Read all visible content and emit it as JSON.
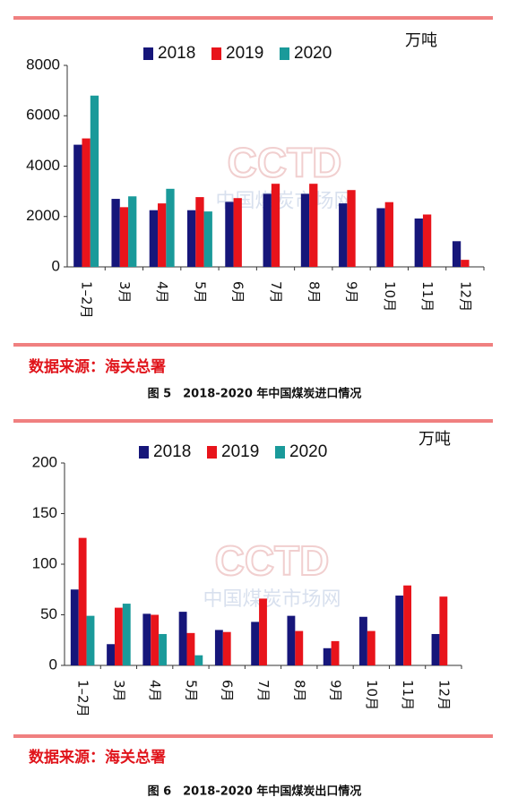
{
  "chart_data": [
    {
      "type": "bar",
      "unit": "万吨",
      "watermark": "CCTD",
      "watermark_sub": "中国煤炭市场网",
      "source": "数据来源：海关总署",
      "caption": "图 5　2018-2020 年中国煤炭进口情况",
      "categories": [
        "1–2月",
        "3月",
        "4月",
        "5月",
        "6月",
        "7月",
        "8月",
        "9月",
        "10月",
        "11月",
        "12月"
      ],
      "series": [
        {
          "name": "2018",
          "color": "#16167a",
          "values": [
            4850,
            2700,
            2250,
            2250,
            2580,
            2900,
            2900,
            2520,
            2330,
            1920,
            1020
          ]
        },
        {
          "name": "2019",
          "color": "#e8141b",
          "values": [
            5100,
            2370,
            2520,
            2770,
            2730,
            3300,
            3300,
            3050,
            2570,
            2080,
            280
          ]
        },
        {
          "name": "2020",
          "color": "#1a9a9a",
          "values": [
            6800,
            2800,
            3100,
            2200,
            null,
            null,
            null,
            null,
            null,
            null,
            null
          ]
        }
      ],
      "ylim": [
        0,
        8000
      ],
      "yticks": [
        0,
        2000,
        4000,
        6000,
        8000
      ],
      "legend": "top"
    },
    {
      "type": "bar",
      "unit": "万吨",
      "watermark": "CCTD",
      "watermark_sub": "中国煤炭市场网",
      "source": "数据来源：海关总署",
      "caption": "图 6　2018-2020 年中国煤炭出口情况",
      "categories": [
        "1–2月",
        "3月",
        "4月",
        "5月",
        "6月",
        "7月",
        "8月",
        "9月",
        "10月",
        "11月",
        "12月"
      ],
      "series": [
        {
          "name": "2018",
          "color": "#16167a",
          "values": [
            75,
            21,
            51,
            53,
            35,
            43,
            49,
            17,
            48,
            69,
            31
          ]
        },
        {
          "name": "2019",
          "color": "#e8141b",
          "values": [
            126,
            57,
            50,
            32,
            33,
            66,
            34,
            24,
            34,
            79,
            68
          ]
        },
        {
          "name": "2020",
          "color": "#1a9a9a",
          "values": [
            49,
            61,
            31,
            10,
            null,
            null,
            null,
            null,
            null,
            null,
            null
          ]
        }
      ],
      "ylim": [
        0,
        200
      ],
      "yticks": [
        0,
        50,
        100,
        150,
        200
      ],
      "legend": "top"
    }
  ]
}
